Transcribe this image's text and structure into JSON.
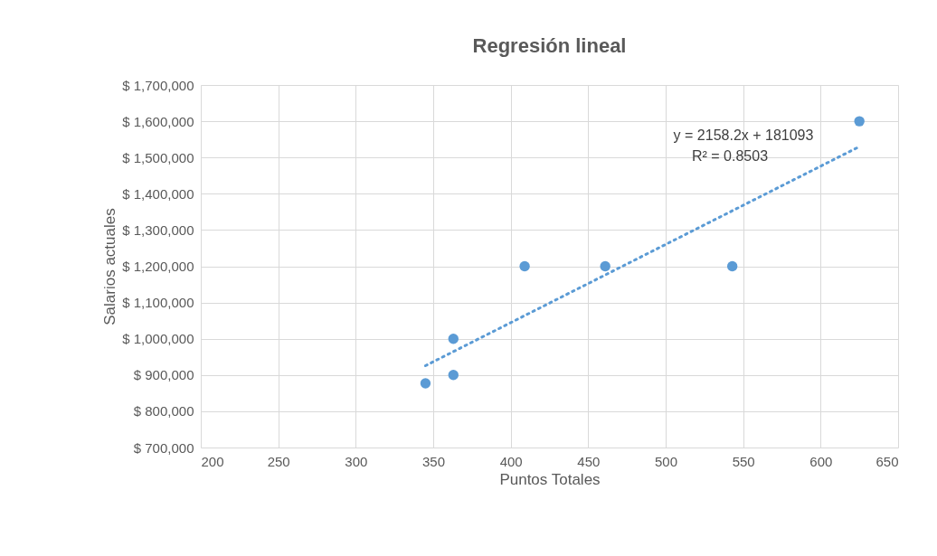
{
  "chart_data": {
    "type": "scatter",
    "title": "Regresión lineal",
    "xlabel": "Puntos Totales",
    "ylabel": "Salarios actuales",
    "series": [
      {
        "color": "#5b9bd5",
        "x": [
          345,
          363,
          363,
          409,
          461,
          543,
          625
        ],
        "values": [
          877000,
          1000000,
          900000,
          1200000,
          1200000,
          1200000,
          1600000
        ],
        "marker": "circle"
      },
      {
        "type": "line",
        "color": "#5b9bd5",
        "x": [
          345,
          625
        ],
        "values": [
          925700,
          1530000
        ],
        "line_style": "dotted"
      }
    ],
    "annotations": [
      "y = 2158.2x + 181093",
      "R² = 0.8503"
    ],
    "xlim": [
      200,
      650
    ],
    "xticks": [
      200,
      250,
      300,
      350,
      400,
      450,
      500,
      550,
      600,
      650
    ],
    "ylim": [
      700000,
      1700000
    ],
    "yticks": [
      {
        "value": 700000,
        "label": "$ 700,000"
      },
      {
        "value": 800000,
        "label": "$ 800,000"
      },
      {
        "value": 900000,
        "label": "$ 900,000"
      },
      {
        "value": 1000000,
        "label": "$ 1,000,000"
      },
      {
        "value": 1100000,
        "label": "$ 1,100,000"
      },
      {
        "value": 1200000,
        "label": "$ 1,200,000"
      },
      {
        "value": 1300000,
        "label": "$ 1,300,000"
      },
      {
        "value": 1400000,
        "label": "$ 1,400,000"
      },
      {
        "value": 1500000,
        "label": "$ 1,500,000"
      },
      {
        "value": 1600000,
        "label": "$ 1,600,000"
      },
      {
        "value": 1700000,
        "label": "$ 1,700,000"
      }
    ],
    "grid": true
  }
}
